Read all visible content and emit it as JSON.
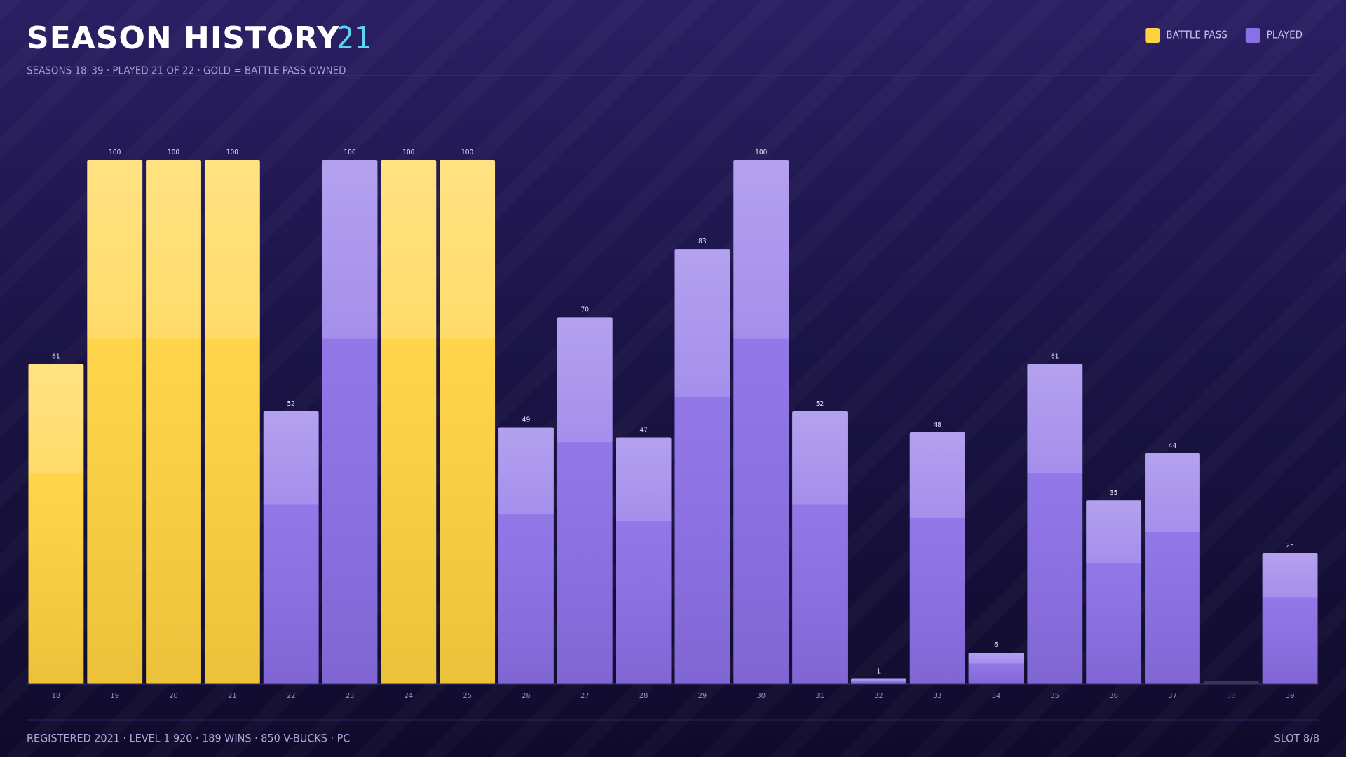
{
  "header": {
    "title": "SEASON HISTORY",
    "count": "21",
    "subtitle": "SEASONS 18–39 · PLAYED 21 OF 22 · GOLD = BATTLE PASS OWNED"
  },
  "chart_data": {
    "type": "bar",
    "categories": [
      "18",
      "19",
      "20",
      "21",
      "22",
      "23",
      "24",
      "25",
      "26",
      "27",
      "28",
      "29",
      "30",
      "31",
      "32",
      "33",
      "34",
      "35",
      "36",
      "37",
      "38",
      "39"
    ],
    "series": [
      {
        "name": "BATTLE PASS",
        "color": "#ffd23f",
        "values": [
          61,
          100,
          100,
          100,
          null,
          null,
          100,
          100,
          null,
          null,
          null,
          null,
          null,
          null,
          null,
          null,
          null,
          null,
          null,
          null,
          null,
          null
        ]
      },
      {
        "name": "PLAYED",
        "color": "#8b6fe6",
        "values": [
          null,
          null,
          null,
          null,
          52,
          100,
          null,
          null,
          49,
          70,
          47,
          83,
          100,
          52,
          1,
          48,
          6,
          61,
          35,
          44,
          null,
          25
        ]
      }
    ],
    "ylim": [
      0,
      100
    ],
    "legend": "top-right"
  },
  "footer": {
    "left": "REGISTERED 2021 · LEVEL 1 920 · 189 WINS · 850 V-BUCKS · PC",
    "right": "SLOT 8/8"
  }
}
